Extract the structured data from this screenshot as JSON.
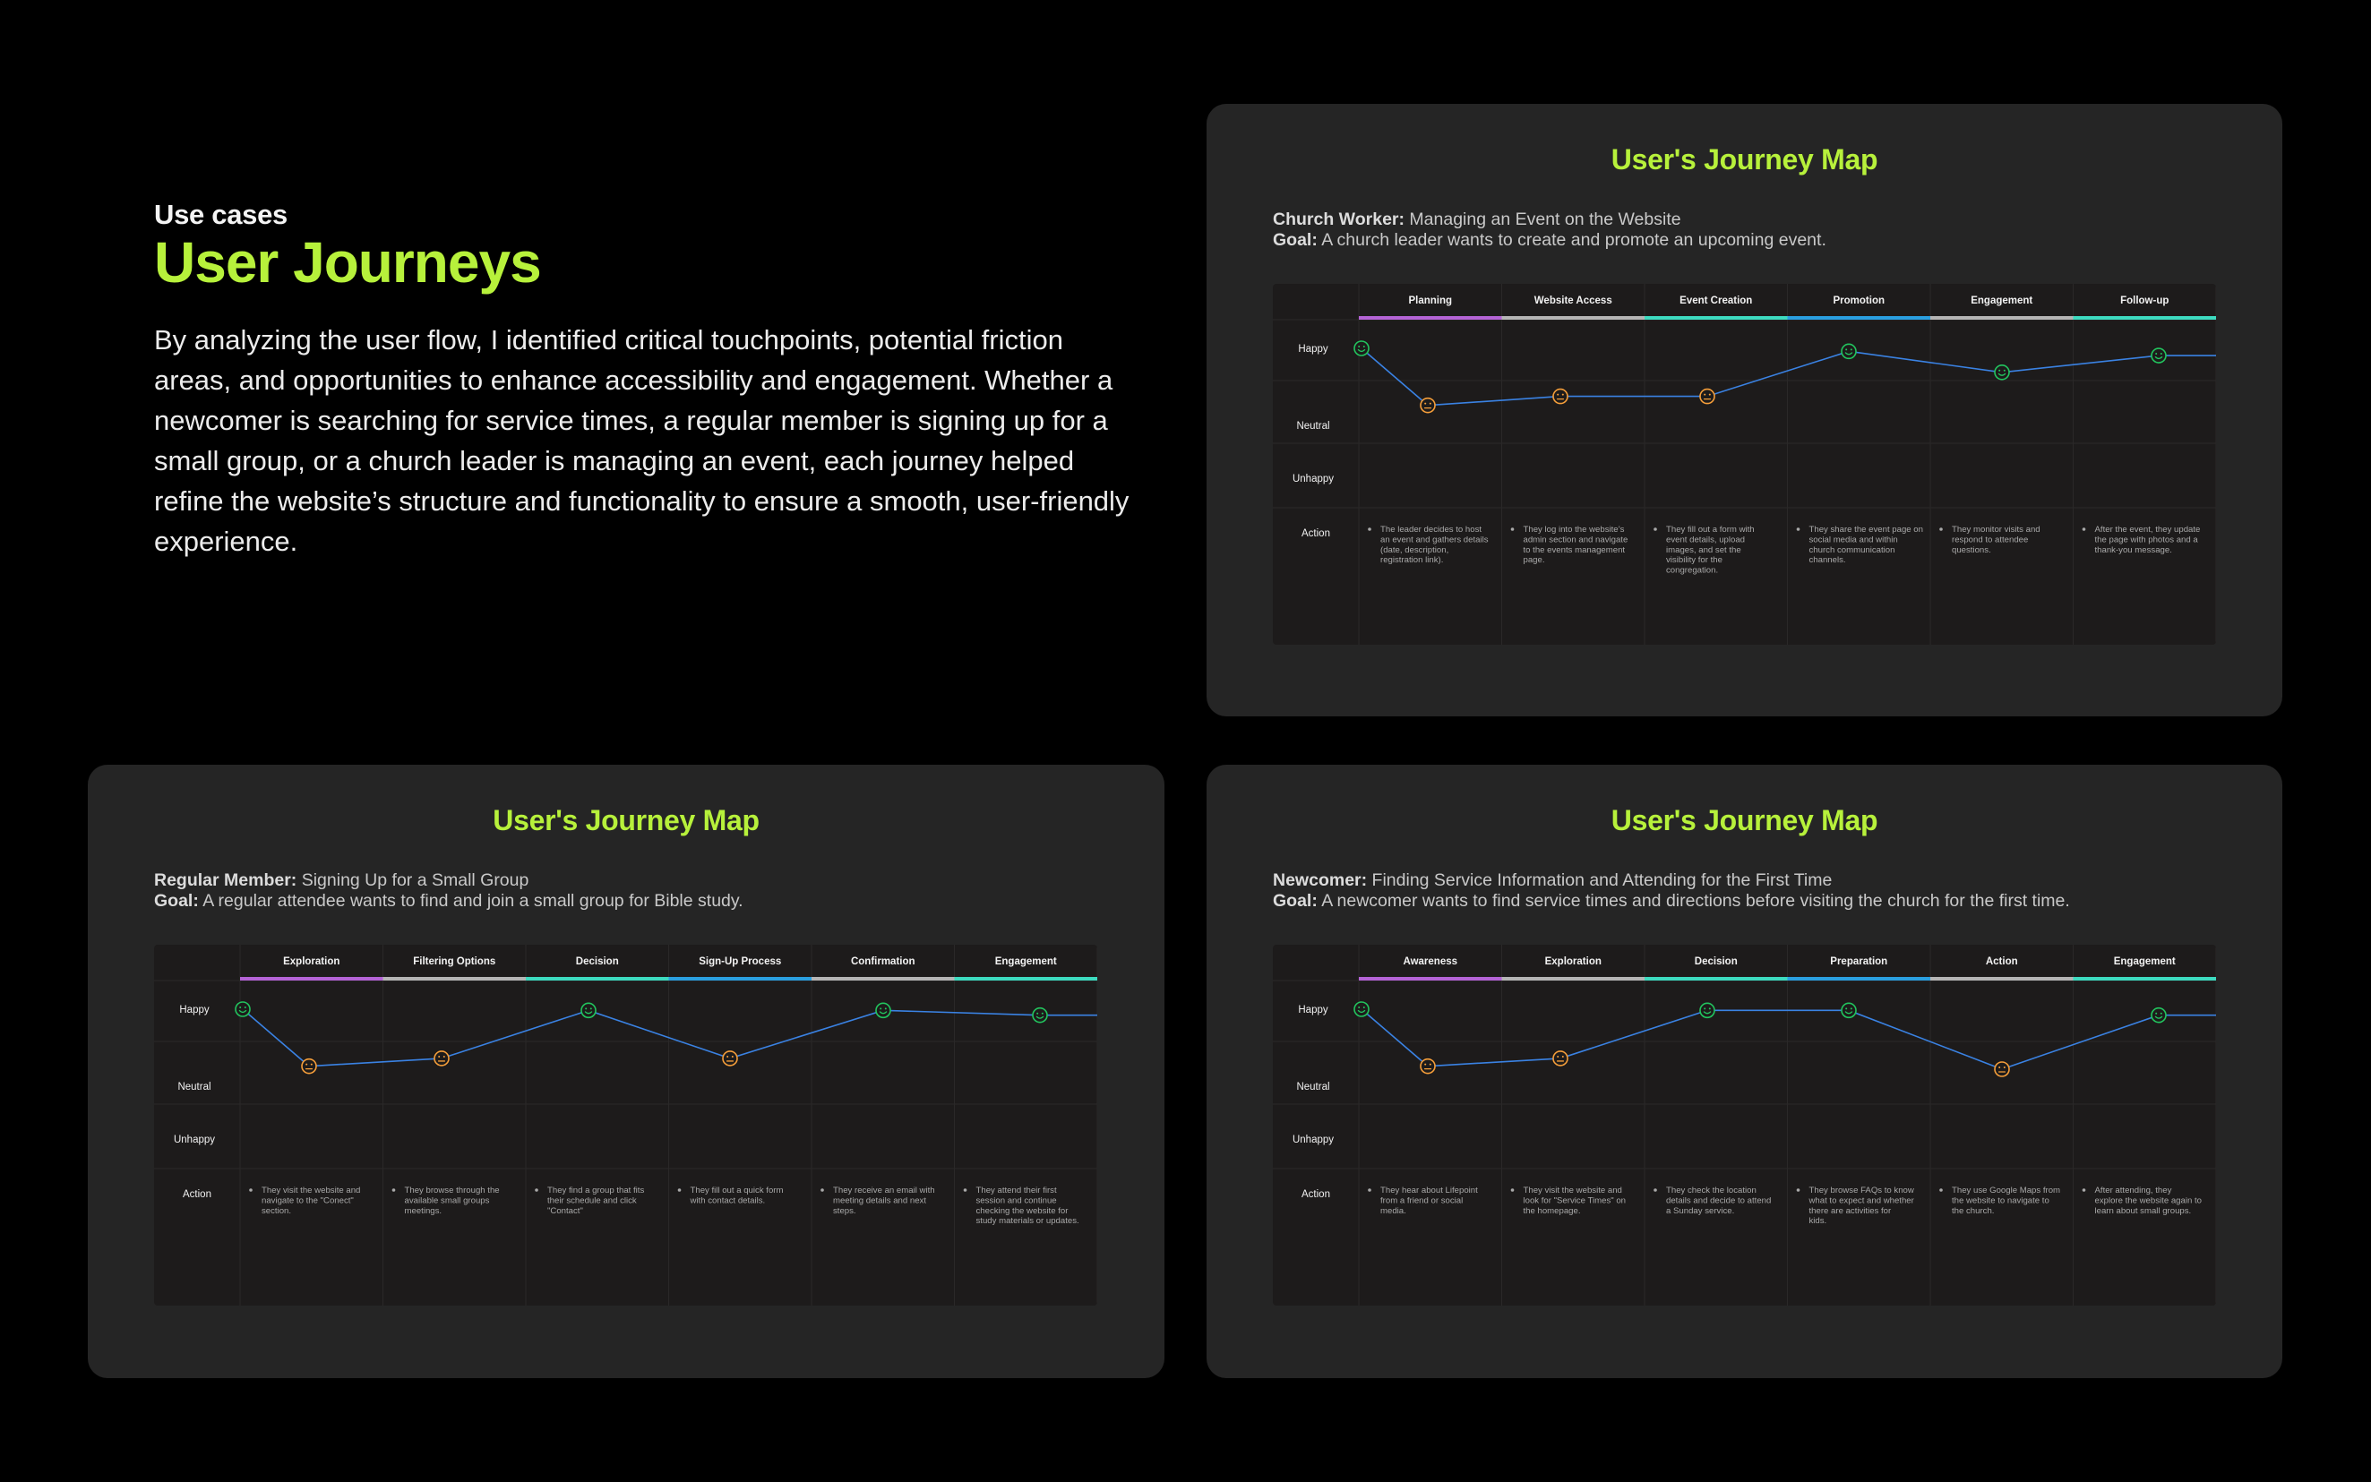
{
  "intro": {
    "eyebrow": "Use cases",
    "headline": "User Journeys",
    "body": "By analyzing the user flow, I identified critical touchpoints, potential friction areas, and opportunities to enhance accessibility and engagement. Whether a newcomer is searching for service times, a regular member is signing up for a small group, or a church leader is managing an event, each journey helped refine the website’s structure and functionality to ensure a smooth, user-friendly experience."
  },
  "colors": {
    "accent": "#b7f13b",
    "happy": "#22c55e",
    "neutral": "#f59e3a",
    "line": "#3a82e3",
    "card_bg": "#252525",
    "map_bg": "#1d1b1b"
  },
  "row_labels": {
    "happy": "Happy",
    "neutral": "Neutral",
    "unhappy": "Unhappy",
    "action": "Action"
  },
  "journeys": [
    {
      "id": "church-worker",
      "title": "User's Journey Map",
      "persona_label": "Church Worker:",
      "persona_desc": "Managing an Event on the Website",
      "goal_label": "Goal:",
      "goal_desc": "A church leader wants to create and promote an upcoming event.",
      "phases": [
        "Planning",
        "Website Access",
        "Event Creation",
        "Promotion",
        "Engagement",
        "Follow-up"
      ],
      "phase_colors": [
        "#b463d6",
        "#b5b5b5",
        "#3ddbc0",
        "#2a9fe0",
        "#b5b5b5",
        "#3ddbc0"
      ],
      "points": [
        {
          "level": 1.0,
          "mood": "happy"
        },
        {
          "level": 0.05,
          "mood": "neutral"
        },
        {
          "level": 0.2,
          "mood": "neutral"
        },
        {
          "level": 0.2,
          "mood": "neutral"
        },
        {
          "level": 0.95,
          "mood": "happy"
        },
        {
          "level": 0.6,
          "mood": "happy"
        },
        {
          "level": 0.88,
          "mood": "happy"
        }
      ],
      "actions": [
        "The leader decides to host an event and gathers details (date, description, registration link).",
        "They log into the website’s admin section and navigate to the events management page.",
        "They fill out a form with event details, upload images, and set the visibility for the congregation.",
        "They share the event page on social media and within church communication channels.",
        "They monitor visits and respond to attendee questions.",
        "After the event, they update the page with photos and a thank-you message."
      ]
    },
    {
      "id": "regular-member",
      "title": "User's Journey Map",
      "persona_label": "Regular Member:",
      "persona_desc": "Signing Up for a Small Group",
      "goal_label": "Goal:",
      "goal_desc": "A regular attendee wants to find and join a small group for Bible study.",
      "phases": [
        "Exploration",
        "Filtering Options",
        "Decision",
        "Sign-Up Process",
        "Confirmation",
        "Engagement"
      ],
      "phase_colors": [
        "#b463d6",
        "#b5b5b5",
        "#3ddbc0",
        "#2a9fe0",
        "#b5b5b5",
        "#3ddbc0"
      ],
      "points": [
        {
          "level": 1.0,
          "mood": "happy"
        },
        {
          "level": 0.05,
          "mood": "neutral"
        },
        {
          "level": 0.18,
          "mood": "neutral"
        },
        {
          "level": 0.98,
          "mood": "happy"
        },
        {
          "level": 0.18,
          "mood": "neutral"
        },
        {
          "level": 0.98,
          "mood": "happy"
        },
        {
          "level": 0.9,
          "mood": "happy"
        }
      ],
      "actions": [
        "They visit the website and navigate to the \"Conect\" section.",
        "They browse through the available small groups meetings.",
        "They find a group that fits their schedule and click \"Contact\"",
        "They fill out a quick form with contact details.",
        "They receive an email with meeting details and next steps.",
        "They attend their first session and continue checking the website for study materials or updates."
      ]
    },
    {
      "id": "newcomer",
      "title": "User's Journey Map",
      "persona_label": "Newcomer:",
      "persona_desc": "Finding Service Information and Attending for the First Time",
      "goal_label": "Goal:",
      "goal_desc": "A newcomer wants to find service times and directions before visiting the church for the first time.",
      "phases": [
        "Awareness",
        "Exploration",
        "Decision",
        "Preparation",
        "Action",
        "Engagement"
      ],
      "phase_colors": [
        "#b463d6",
        "#b5b5b5",
        "#3ddbc0",
        "#2a9fe0",
        "#b5b5b5",
        "#3ddbc0"
      ],
      "points": [
        {
          "level": 1.0,
          "mood": "happy"
        },
        {
          "level": 0.05,
          "mood": "neutral"
        },
        {
          "level": 0.18,
          "mood": "neutral"
        },
        {
          "level": 0.98,
          "mood": "happy"
        },
        {
          "level": 0.98,
          "mood": "happy"
        },
        {
          "level": 0.0,
          "mood": "neutral"
        },
        {
          "level": 0.9,
          "mood": "happy"
        }
      ],
      "actions": [
        "They hear about Lifepoint from a friend or social media.",
        "They visit the website and look for \"Service Times\" on the homepage.",
        "They check the location details and decide to attend a Sunday service.",
        "They browse FAQs to know what to expect and whether there are activities for kids.",
        "They use Google Maps from the website to navigate to the church.",
        "After attending, they explore the website again to learn about small groups."
      ]
    }
  ]
}
